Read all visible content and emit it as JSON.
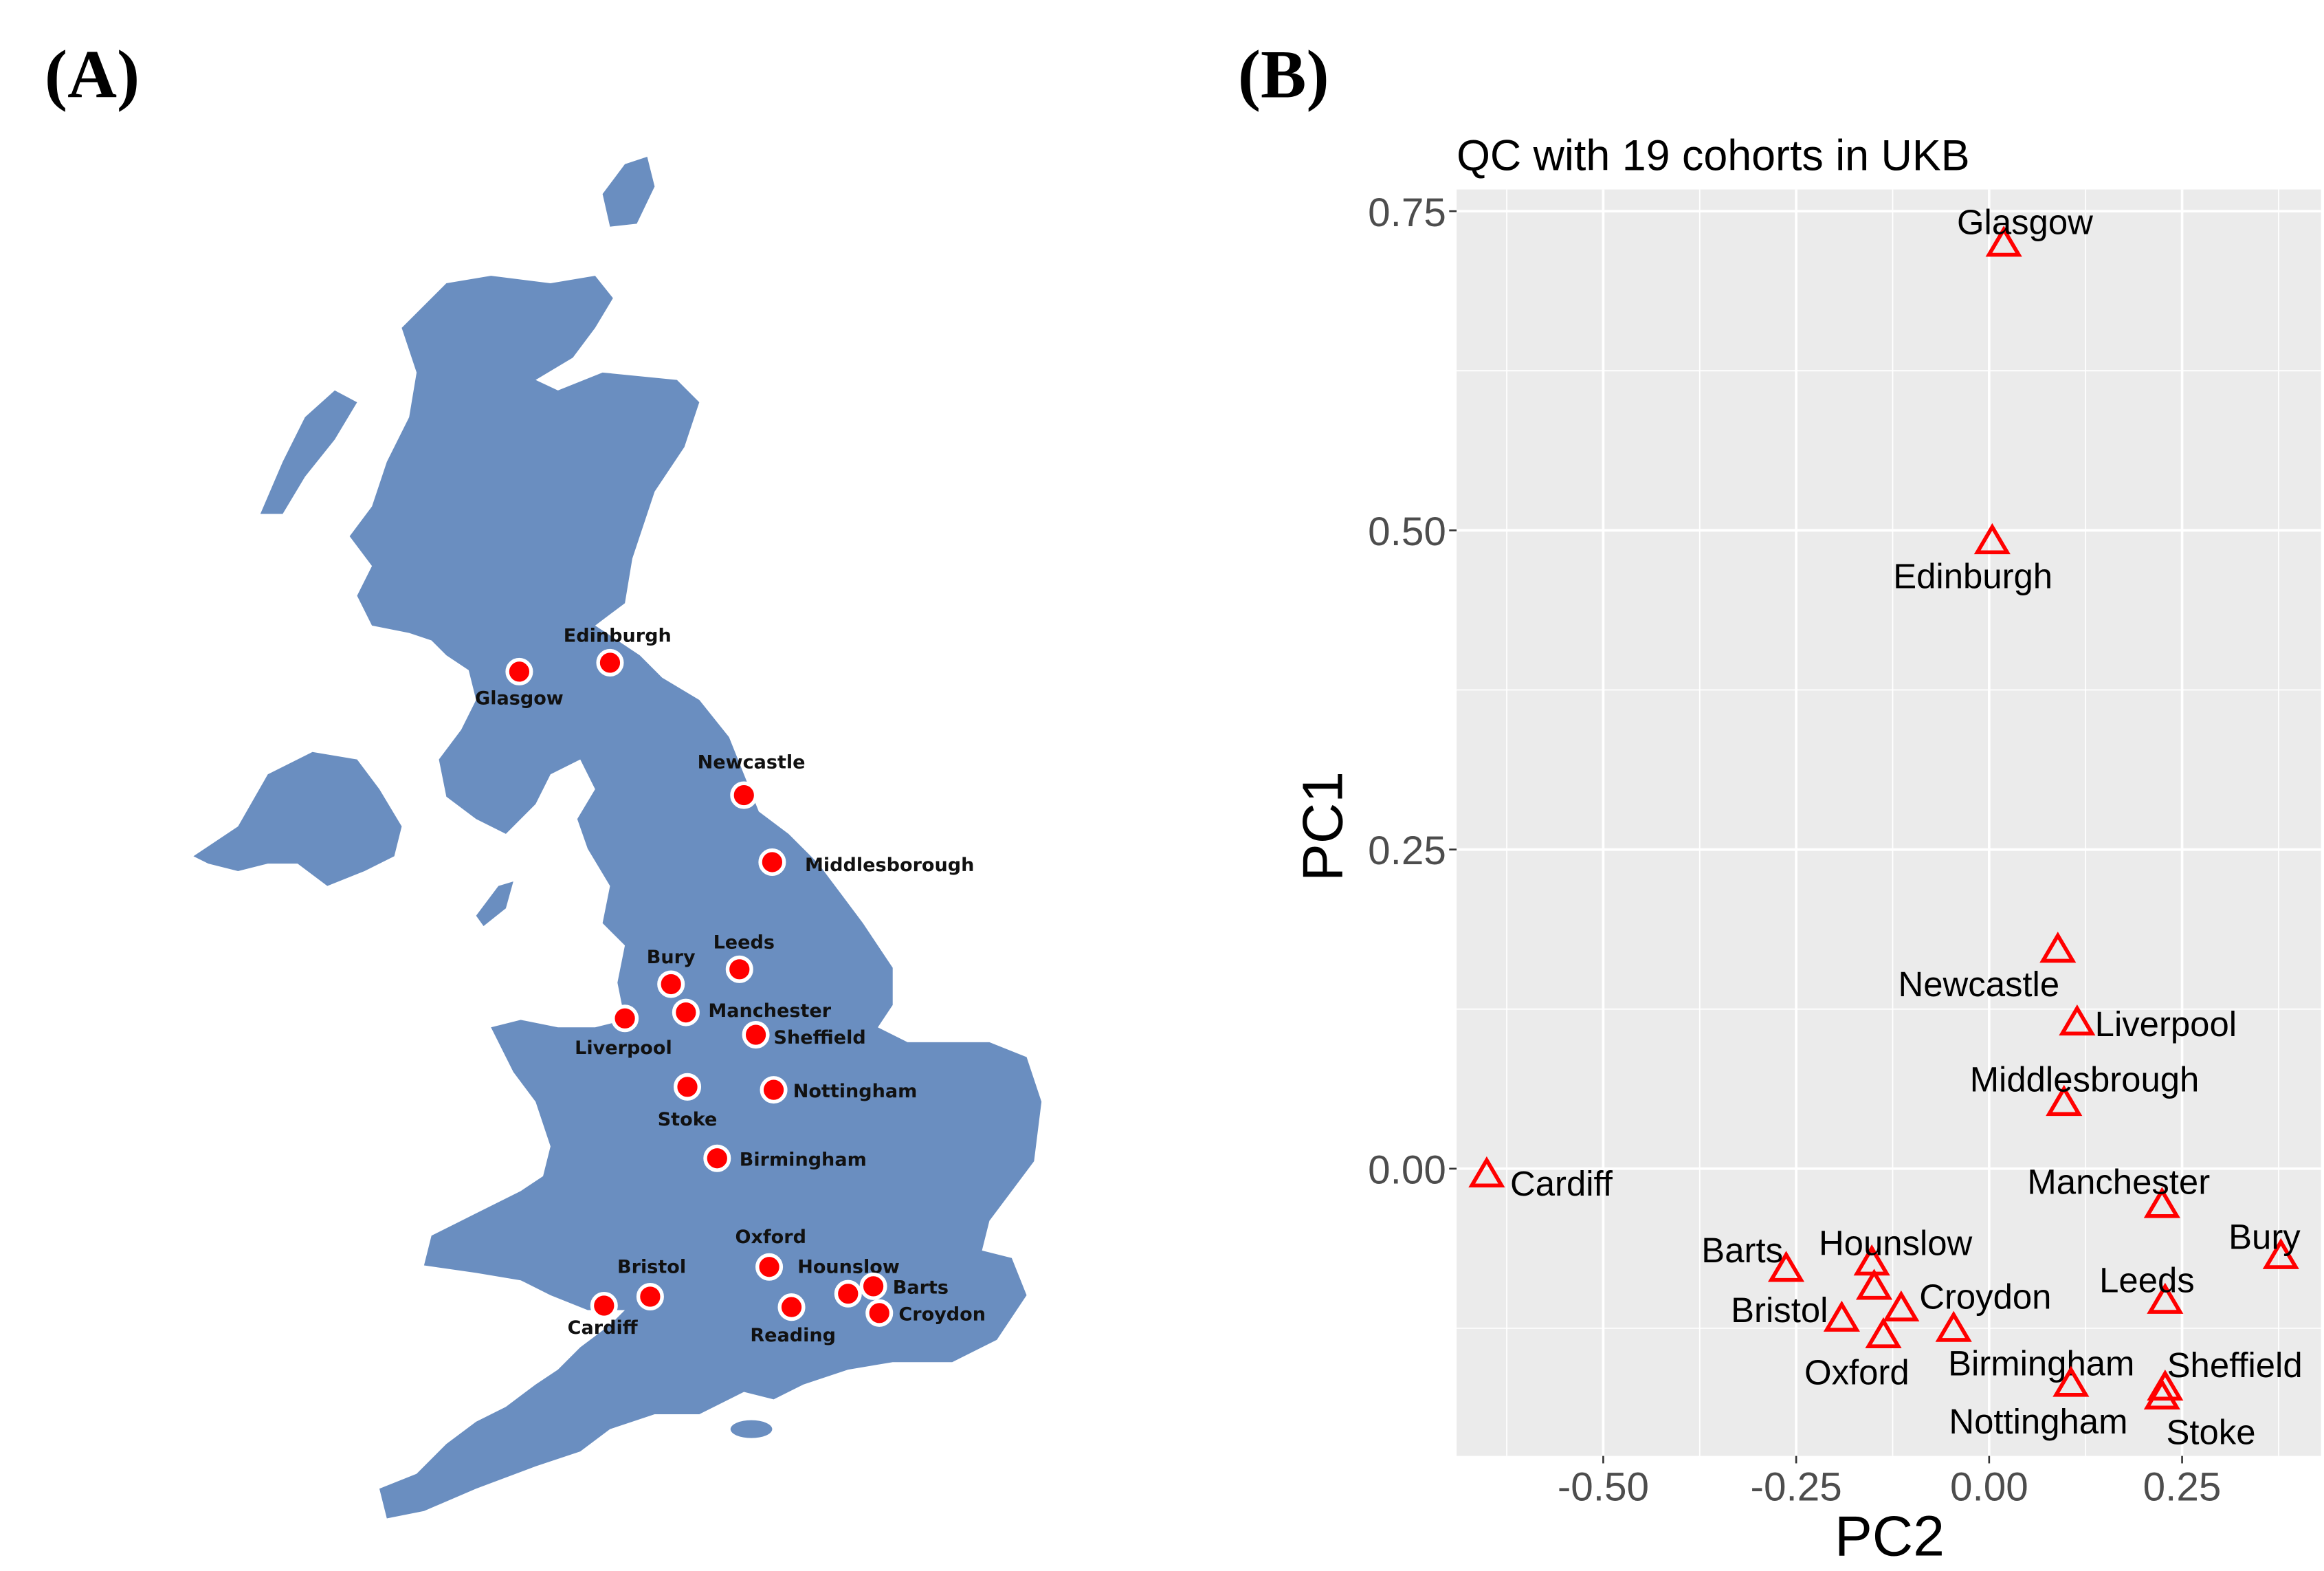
{
  "panels": {
    "a_tag": "(A)",
    "b_tag": "(B)"
  },
  "map": {
    "land_color": "#6A8EC0",
    "marker_color": "#FF0000",
    "cities": [
      "Glasgow",
      "Edinburgh",
      "Newcastle",
      "Middlesborough",
      "Bury",
      "Leeds",
      "Manchester",
      "Liverpool",
      "Sheffield",
      "Stoke",
      "Nottingham",
      "Birmingham",
      "Oxford",
      "Hounslow",
      "Barts",
      "Croydon",
      "Reading",
      "Bristol",
      "Cardiff"
    ]
  },
  "chart_data": {
    "type": "scatter",
    "title": "QC with 19 cohorts in UKB",
    "xlabel": "PC2",
    "ylabel": "PC1",
    "xlim": [
      -0.69,
      0.43
    ],
    "ylim": [
      -0.225,
      0.767
    ],
    "xticks": [
      "-0.50",
      "-0.25",
      "0.00",
      "0.25"
    ],
    "yticks": [
      "0.00",
      "0.25",
      "0.50",
      "0.75"
    ],
    "grid": true,
    "marker": "open-triangle",
    "marker_color": "#FF0000",
    "panel_background": "#EBEBEB",
    "points": [
      {
        "label": "Glasgow",
        "x": 0.019,
        "y": 0.724
      },
      {
        "label": "Edinburgh",
        "x": 0.004,
        "y": 0.491
      },
      {
        "label": "Newcastle",
        "x": 0.089,
        "y": 0.171
      },
      {
        "label": "Liverpool",
        "x": 0.114,
        "y": 0.114
      },
      {
        "label": "Middlesbrough",
        "x": 0.097,
        "y": 0.051
      },
      {
        "label": "Cardiff",
        "x": -0.651,
        "y": -0.005
      },
      {
        "label": "Manchester",
        "x": 0.224,
        "y": -0.029
      },
      {
        "label": "Bury",
        "x": 0.378,
        "y": -0.069
      },
      {
        "label": "Barts",
        "x": -0.263,
        "y": -0.079
      },
      {
        "label": "Hounslow",
        "x": -0.152,
        "y": -0.074
      },
      {
        "label": "Croydon",
        "x": -0.149,
        "y": -0.093
      },
      {
        "label": "",
        "x": -0.114,
        "y": -0.11
      },
      {
        "label": "Bristol",
        "x": -0.191,
        "y": -0.118
      },
      {
        "label": "Oxford",
        "x": -0.137,
        "y": -0.131
      },
      {
        "label": "Birmingham",
        "x": -0.046,
        "y": -0.126
      },
      {
        "label": "Nottingham",
        "x": 0.106,
        "y": -0.169
      },
      {
        "label": "Leeds",
        "x": 0.228,
        "y": -0.104
      },
      {
        "label": "Sheffield",
        "x": 0.228,
        "y": -0.172
      },
      {
        "label": "Stoke",
        "x": 0.224,
        "y": -0.179
      }
    ]
  }
}
